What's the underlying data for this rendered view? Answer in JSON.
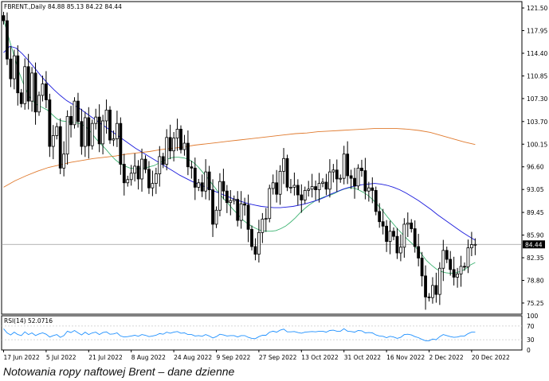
{
  "header": {
    "symbol_line": "FBRENT.,Daily  84.88 85.13 84.22 84.44",
    "rsi_label": "RSI(14) 52.0716"
  },
  "caption": "Notowania ropy naftowej Brent – dane dzienne",
  "colors": {
    "candle": "#000000",
    "ma_fast": "#3cb371",
    "ma_mid": "#1a1adc",
    "ma_slow": "#e07a2e",
    "rsi": "#1e90ff",
    "last_price_bg": "#000000",
    "last_price_text": "#ffffff"
  },
  "chart_data": [
    {
      "type": "candlestick",
      "title": "FBRENT.,Daily",
      "ylim": [
        73.5,
        122.5
      ],
      "y_ticks": [
        "121.50",
        "117.95",
        "114.40",
        "110.85",
        "107.30",
        "103.70",
        "100.15",
        "96.60",
        "93.05",
        "89.45",
        "85.90",
        "82.35",
        "78.80",
        "75.25"
      ],
      "last_price": "84.44",
      "x_tick_labels": [
        "17 Jun 2022",
        "5 Jul 2022",
        "21 Jul 2022",
        "8 Aug 2022",
        "24 Aug 2022",
        "9 Sep 2022",
        "27 Sep 2022",
        "13 Oct 2022",
        "31 Oct 2022",
        "16 Nov 2022",
        "2 Dec 2022",
        "20 Dec 2022"
      ],
      "x_tick_index": [
        0,
        12,
        24,
        36,
        48,
        60,
        72,
        84,
        96,
        108,
        120,
        132
      ],
      "closes": [
        119.5,
        113.5,
        110.4,
        114.0,
        108.2,
        106.5,
        112.3,
        106.9,
        111.3,
        105.2,
        107.8,
        109.6,
        107.1,
        99.8,
        101.5,
        102.9,
        96.4,
        98.6,
        104.5,
        103.2,
        106.9,
        103.7,
        99.8,
        104.3,
        99.9,
        103.4,
        104.4,
        100.2,
        103.8,
        105.5,
        100.8,
        101.0,
        103.4,
        97.0,
        94.1,
        94.6,
        95.6,
        96.7,
        94.7,
        97.8,
        96.2,
        93.3,
        94.0,
        95.5,
        98.2,
        97.0,
        101.2,
        99.1,
        101.1,
        102.5,
        99.3,
        100.3,
        96.6,
        96.4,
        93.4,
        94.1,
        92.8,
        95.8,
        93.0,
        87.6,
        89.8,
        94.3,
        92.8,
        91.0,
        91.3,
        91.5,
        88.2,
        90.8,
        90.6,
        86.8,
        84.1,
        82.9,
        86.3,
        88.4,
        88.5,
        93.2,
        94.1,
        92.3,
        95.9,
        97.9,
        93.4,
        93.4,
        93.7,
        92.2,
        91.4,
        92.9,
        93.1,
        93.5,
        93.0,
        94.0,
        94.2,
        93.1,
        95.8,
        96.1,
        94.7,
        94.8,
        98.6,
        95.2,
        94.8,
        93.6,
        96.4,
        96.0,
        92.8,
        93.3,
        92.9,
        89.6,
        88.0,
        87.3,
        84.9,
        86.5,
        85.7,
        83.1,
        84.0,
        87.6,
        87.8,
        86.9,
        84.1,
        82.3,
        79.5,
        76.2,
        76.1,
        78.0,
        76.6,
        80.7,
        83.5,
        82.1,
        80.5,
        79.3,
        79.8,
        81.0,
        80.9,
        83.9,
        84.4,
        84.44
      ],
      "series": [
        {
          "name": "MA fast",
          "values": [
            119.7,
            117.0,
            114.4,
            111.8,
            109.8,
            108.0,
            106.9,
            106.3,
            105.9,
            105.5,
            104.8,
            104.1,
            103.8,
            103.7,
            103.6,
            103.5,
            103.3,
            102.8,
            102.0,
            101.0,
            100.2,
            99.4,
            98.5,
            97.7,
            97.1,
            96.7,
            96.4,
            96.3,
            96.3,
            96.4,
            96.6,
            96.8,
            97.2,
            97.6,
            97.9,
            98.1,
            98.1,
            98.0,
            97.8,
            97.3,
            96.6,
            95.7,
            94.8,
            93.8,
            92.8,
            91.8,
            91.0,
            90.1,
            89.3,
            88.4,
            87.8,
            87.3,
            86.9,
            86.6,
            86.5,
            86.5,
            86.6,
            86.9,
            87.3,
            87.9,
            88.6,
            89.4,
            90.1,
            90.7,
            91.2,
            91.6,
            91.9,
            92.1,
            92.4,
            92.8,
            93.1,
            93.3,
            93.3,
            93.0,
            92.6,
            92.1,
            91.4,
            90.6,
            89.7,
            88.7,
            87.8,
            86.9,
            86.1,
            85.3,
            84.6,
            83.8,
            82.9,
            81.9,
            81.2,
            80.6,
            80.2,
            80.0,
            79.9,
            80.0,
            80.2,
            80.6,
            81.2,
            81.6
          ]
        },
        {
          "name": "MA mid",
          "values": [
            114.5,
            115.5,
            115.2,
            114.3,
            113.2,
            112.0,
            110.8,
            109.7,
            108.7,
            107.8,
            107.0,
            106.4,
            105.8,
            105.1,
            104.4,
            103.7,
            103.0,
            102.3,
            101.6,
            100.9,
            100.2,
            99.5,
            98.9,
            98.3,
            97.7,
            97.1,
            96.5,
            95.9,
            95.3,
            94.8,
            94.3,
            93.9,
            93.5,
            93.0,
            92.6,
            92.2,
            91.8,
            91.4,
            91.1,
            90.8,
            90.6,
            90.4,
            90.3,
            90.2,
            90.2,
            90.3,
            90.4,
            90.6,
            90.8,
            91.1,
            91.4,
            91.8,
            92.3,
            92.7,
            93.1,
            93.4,
            93.6,
            93.8,
            93.9,
            94.0,
            93.9,
            93.7,
            93.4,
            93.0,
            92.5,
            91.9,
            91.3,
            90.6,
            89.9,
            89.1,
            88.4,
            87.7,
            87.0,
            86.3,
            85.7,
            85.1
          ]
        },
        {
          "name": "MA slow",
          "values": [
            93.4,
            94.4,
            95.2,
            95.9,
            96.5,
            96.9,
            97.3,
            97.6,
            97.9,
            98.1,
            98.3,
            98.6,
            98.8,
            99.0,
            99.3,
            99.5,
            99.7,
            100.0,
            100.2,
            100.4,
            100.6,
            100.8,
            101.0,
            101.2,
            101.4,
            101.6,
            101.8,
            101.9,
            102.1,
            102.2,
            102.3,
            102.4,
            102.5,
            102.6,
            102.6,
            102.6,
            102.5,
            102.3,
            102.0,
            101.5,
            101.0,
            100.5,
            100.1
          ]
        },
        {
          "name": "RSI(14)",
          "values": [
            62,
            50,
            44,
            52,
            45,
            42,
            53,
            45,
            50,
            42,
            47,
            50,
            46,
            38,
            42,
            45,
            37,
            42,
            55,
            51,
            57,
            50,
            44,
            52,
            45,
            50,
            52,
            45,
            51,
            53,
            46,
            47,
            50,
            41,
            38,
            39,
            41,
            43,
            40,
            45,
            43,
            39,
            41,
            43,
            48,
            46,
            52,
            49,
            52,
            54,
            49,
            50,
            45,
            45,
            41,
            42,
            40,
            45,
            41,
            35,
            39,
            46,
            44,
            41,
            42,
            42,
            38,
            42,
            42,
            37,
            34,
            33,
            39,
            43,
            43,
            52,
            55,
            52,
            58,
            61,
            53,
            53,
            54,
            51,
            49,
            52,
            53,
            54,
            53,
            55,
            55,
            52,
            57,
            58,
            55,
            55,
            62,
            55,
            54,
            52,
            57,
            56,
            50,
            51,
            50,
            44,
            41,
            40,
            36,
            40,
            38,
            34,
            37,
            45,
            46,
            44,
            39,
            36,
            31,
            27,
            27,
            32,
            30,
            39,
            45,
            42,
            39,
            37,
            38,
            41,
            41,
            48,
            52,
            52
          ]
        }
      ]
    },
    {
      "type": "line",
      "title": "RSI(14)",
      "ylim": [
        0,
        100
      ],
      "y_ticks": [
        "100",
        "70",
        "30",
        "0"
      ]
    }
  ]
}
